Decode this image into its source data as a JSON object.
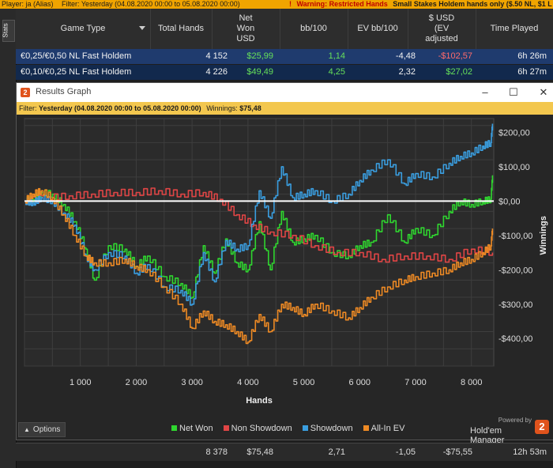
{
  "topbar": {
    "player": "Player: ja (Alias)",
    "filter": "Filter: Yesterday (04.08.2020 00:00 to 05.08.2020 00:00)",
    "warning_icon": "exclamation-icon",
    "warning_label": "Warning: Restricted Hands",
    "warning_text": "Small Stakes Holdem hands only ($.50 NL, $1 L"
  },
  "side": {
    "stats_tab": "Stats"
  },
  "table": {
    "headers": [
      "Game Type",
      "Total Hands",
      "Net Won USD",
      "bb/100",
      "EV bb/100",
      "$ USD (EV adjusted",
      "Time Played"
    ],
    "rows": [
      {
        "game": "€0,25/€0,50 NL Fast Holdem",
        "hands": "4 152",
        "net": "$25,99",
        "bb": "1,14",
        "evbb": "-4,48",
        "ev": "-$102,57",
        "time": "6h 26m"
      },
      {
        "game": "€0,10/€0,25 NL Fast Holdem",
        "hands": "4 226",
        "net": "$49,49",
        "bb": "4,25",
        "evbb": "2,32",
        "ev": "$27,02",
        "time": "6h 27m"
      }
    ]
  },
  "graph_window": {
    "title": "Results Graph",
    "filter_label": "Filter:",
    "filter_value": "Yesterday (04.08.2020 00:00 to 05.08.2020 00:00)",
    "winnings_label": "Winnings:",
    "winnings_value": "$75,48",
    "options_label": "Options",
    "powered_by": "Powered by",
    "brand_name": "Hold'em Manager",
    "brand_logo": "2"
  },
  "totals": {
    "hands": "8 378",
    "net": "$75,48",
    "bb": "2,71",
    "evbb": "-1,05",
    "ev": "-$75,55",
    "time": "12h 53m"
  },
  "chart_data": {
    "type": "line",
    "xlabel": "Hands",
    "ylabel": "Winnings",
    "xlim": [
      0,
      8400
    ],
    "ylim": [
      -480,
      240
    ],
    "x_ticks": [
      1000,
      2000,
      3000,
      4000,
      5000,
      6000,
      7000,
      8000
    ],
    "x_tick_labels": [
      "1 000",
      "2 000",
      "3 000",
      "4 000",
      "5 000",
      "6 000",
      "7 000",
      "8 000"
    ],
    "y_ticks": [
      200,
      100,
      0,
      -100,
      -200,
      -300,
      -400
    ],
    "y_tick_labels": [
      "$200,00",
      "$100,00",
      "$0,00",
      "-$100,00",
      "-$200,00",
      "-$300,00",
      "-$400,00"
    ],
    "grid": true,
    "legend_position": "bottom-center",
    "series": [
      {
        "name": "Net Won",
        "color": "#2fd62f",
        "x": [
          0,
          150,
          300,
          500,
          700,
          900,
          1100,
          1250,
          1500,
          1800,
          2000,
          2200,
          2500,
          2800,
          3000,
          3200,
          3400,
          3600,
          3800,
          4000,
          4200,
          4400,
          4600,
          4800,
          5000,
          5200,
          5500,
          5800,
          6000,
          6200,
          6500,
          6800,
          7000,
          7300,
          7600,
          7800,
          8000,
          8200,
          8350,
          8378
        ],
        "y": [
          0,
          5,
          25,
          20,
          -10,
          -60,
          -140,
          -230,
          -130,
          -140,
          -190,
          -160,
          -220,
          -240,
          -280,
          -130,
          -210,
          -110,
          -180,
          -200,
          -60,
          -200,
          -30,
          -120,
          -110,
          -100,
          -150,
          -160,
          -130,
          -120,
          -40,
          -120,
          -80,
          -100,
          -30,
          0,
          -10,
          0,
          5,
          75
        ]
      },
      {
        "name": "Non Showdown",
        "color": "#e04545",
        "x": [
          0,
          400,
          800,
          1200,
          1600,
          2000,
          2400,
          2800,
          3200,
          3500,
          3800,
          4100,
          4400,
          4800,
          5200,
          5600,
          6000,
          6400,
          6800,
          7200,
          7600,
          8000,
          8378
        ],
        "y": [
          0,
          10,
          15,
          20,
          25,
          25,
          30,
          20,
          25,
          5,
          -40,
          -70,
          -90,
          -100,
          -130,
          -150,
          -150,
          -170,
          -160,
          -160,
          -170,
          -140,
          -150
        ]
      },
      {
        "name": "Showdown",
        "color": "#3a9ee0",
        "x": [
          0,
          150,
          300,
          500,
          700,
          900,
          1100,
          1250,
          1500,
          1800,
          2000,
          2200,
          2500,
          2800,
          3000,
          3200,
          3400,
          3600,
          3800,
          4000,
          4200,
          4400,
          4600,
          4800,
          5000,
          5200,
          5500,
          5800,
          6000,
          6200,
          6500,
          6800,
          7000,
          7300,
          7600,
          7800,
          8000,
          8200,
          8350,
          8378
        ],
        "y": [
          0,
          -5,
          10,
          0,
          -35,
          -70,
          -160,
          -200,
          -150,
          -160,
          -210,
          -185,
          -250,
          -260,
          -300,
          -150,
          -235,
          -115,
          -140,
          -130,
          30,
          -50,
          100,
          10,
          20,
          30,
          0,
          20,
          60,
          90,
          120,
          50,
          80,
          70,
          110,
          130,
          140,
          160,
          170,
          225
        ]
      },
      {
        "name": "All-In EV",
        "color": "#ee8a24",
        "x": [
          0,
          150,
          300,
          500,
          700,
          900,
          1100,
          1250,
          1500,
          1800,
          2000,
          2200,
          2500,
          2800,
          3000,
          3200,
          3400,
          3600,
          3800,
          4000,
          4200,
          4400,
          4600,
          4800,
          5000,
          5200,
          5500,
          5800,
          6000,
          6200,
          6500,
          6800,
          7000,
          7300,
          7600,
          7800,
          8000,
          8200,
          8350,
          8378
        ],
        "y": [
          0,
          20,
          30,
          10,
          -40,
          -100,
          -160,
          -180,
          -180,
          -170,
          -190,
          -200,
          -250,
          -300,
          -370,
          -320,
          -350,
          -360,
          -380,
          -410,
          -330,
          -380,
          -300,
          -310,
          -330,
          -300,
          -320,
          -340,
          -310,
          -280,
          -250,
          -230,
          -220,
          -210,
          -200,
          -180,
          -170,
          -150,
          -130,
          -80
        ]
      }
    ]
  }
}
